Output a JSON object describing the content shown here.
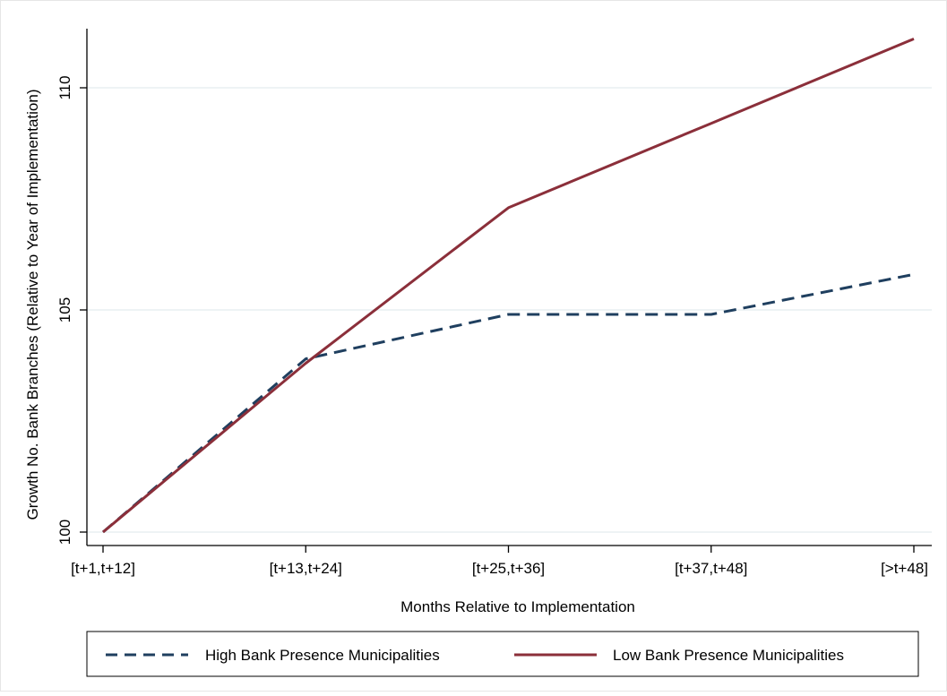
{
  "chart_data": {
    "type": "line",
    "categories": [
      "[t+1,t+12]",
      "[t+13,t+24]",
      "[t+25,t+36]",
      "[t+37,t+48]",
      "[>t+48]"
    ],
    "series": [
      {
        "name": "High Bank Presence Municipalities",
        "values": [
          100,
          103.9,
          104.9,
          104.9,
          105.8
        ],
        "color": "#1f3f5f",
        "style": "dashed"
      },
      {
        "name": "Low Bank Presence Municipalities",
        "values": [
          100,
          103.8,
          107.3,
          109.2,
          111.1
        ],
        "color": "#8b2f3a",
        "style": "solid"
      }
    ],
    "xlabel": "Months Relative to Implementation",
    "ylabel": "Growth No. Bank Branches (Relative to Year of Implementation)",
    "yticks": [
      "100",
      "105",
      "110"
    ],
    "ylim": [
      100,
      111.5
    ],
    "grid": true,
    "legend_position": "bottom"
  }
}
